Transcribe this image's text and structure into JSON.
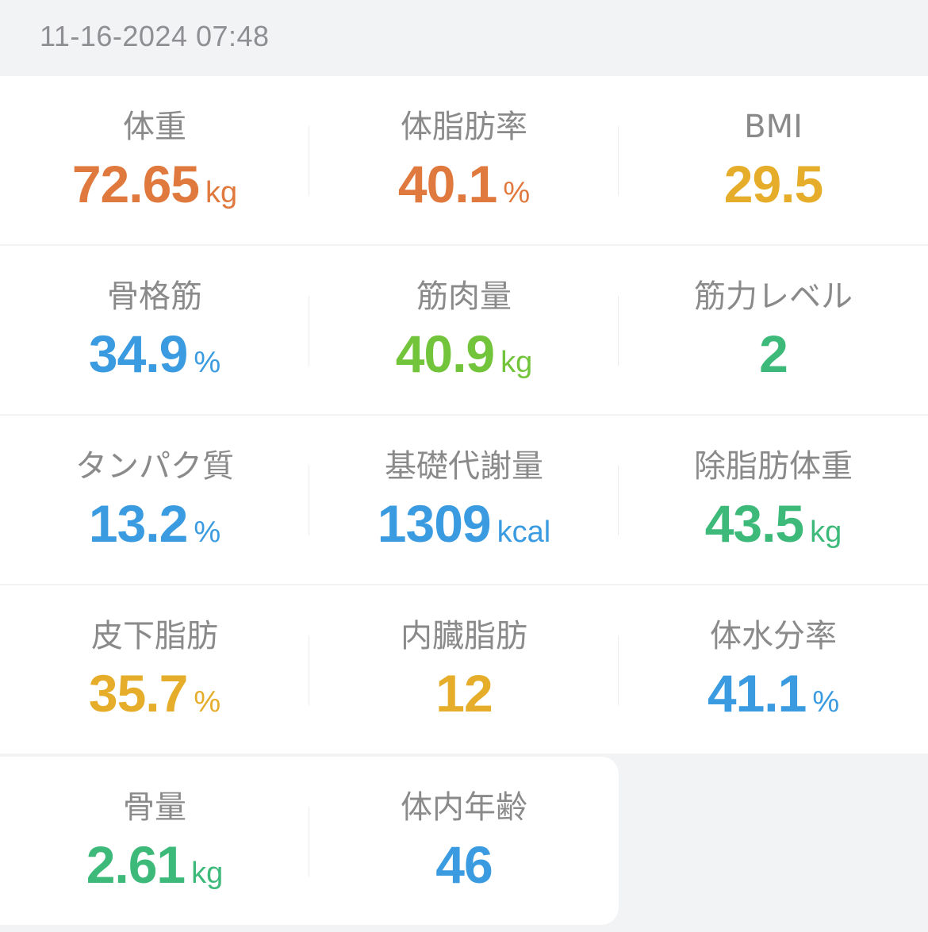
{
  "header": {
    "timestamp": "11-16-2024 07:48"
  },
  "colors": {
    "orange": "#e0793d",
    "yellow": "#e5ad2a",
    "blue": "#3a9be0",
    "lime": "#72c43a",
    "green": "#3dba7a",
    "label": "#8a8a8a",
    "background": "#f2f3f5"
  },
  "rows": [
    [
      {
        "label": "体重",
        "value": "72.65",
        "unit": "kg",
        "color": "#e0793d"
      },
      {
        "label": "体脂肪率",
        "value": "40.1",
        "unit": "%",
        "color": "#e0793d"
      },
      {
        "label": "BMI",
        "value": "29.5",
        "unit": "",
        "color": "#e5ad2a"
      }
    ],
    [
      {
        "label": "骨格筋",
        "value": "34.9",
        "unit": "%",
        "color": "#3a9be0"
      },
      {
        "label": "筋肉量",
        "value": "40.9",
        "unit": "kg",
        "color": "#72c43a"
      },
      {
        "label": "筋力レベル",
        "value": "2",
        "unit": "",
        "color": "#3dba7a"
      }
    ],
    [
      {
        "label": "タンパク質",
        "value": "13.2",
        "unit": "%",
        "color": "#3a9be0"
      },
      {
        "label": "基礎代謝量",
        "value": "1309",
        "unit": "kcal",
        "color": "#3a9be0"
      },
      {
        "label": "除脂肪体重",
        "value": "43.5",
        "unit": "kg",
        "color": "#3dba7a"
      }
    ],
    [
      {
        "label": "皮下脂肪",
        "value": "35.7",
        "unit": "%",
        "color": "#e5ad2a"
      },
      {
        "label": "内臓脂肪",
        "value": "12",
        "unit": "",
        "color": "#e5ad2a"
      },
      {
        "label": "体水分率",
        "value": "41.1",
        "unit": "%",
        "color": "#3a9be0"
      }
    ],
    [
      {
        "label": "骨量",
        "value": "2.61",
        "unit": "kg",
        "color": "#3dba7a"
      },
      {
        "label": "体内年齢",
        "value": "46",
        "unit": "",
        "color": "#3a9be0"
      }
    ]
  ]
}
